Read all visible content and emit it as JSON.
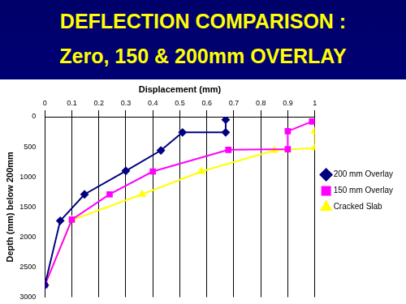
{
  "chart_data": {
    "type": "line",
    "title": "DEFLECTION COMPARISON :",
    "subtitle": "Zero, 150 & 200mm OVERLAY",
    "x_label": "Displacement (mm)",
    "y_label": "Depth (mm) below 200mm",
    "xlim": [
      0,
      1
    ],
    "xticks": [
      0,
      0.1,
      0.2,
      0.3,
      0.4,
      0.5,
      0.6,
      0.7,
      0.8,
      0.9,
      1
    ],
    "ylim": [
      3000,
      0
    ],
    "yticks": [
      0,
      500,
      1000,
      1500,
      2000,
      2500,
      3000
    ],
    "grid": true,
    "legend": "right",
    "series": [
      {
        "name": "200 mm Overlay",
        "color": "#000080",
        "marker": "diamond",
        "x": [
          0.67,
          0.67,
          0.51,
          0.43,
          0.3,
          0.147,
          0.057,
          0
        ],
        "values": [
          50,
          260,
          260,
          560,
          900,
          1290,
          1730,
          2800
        ]
      },
      {
        "name": "150 mm Overlay",
        "color": "#ff00ff",
        "marker": "square",
        "x": [
          0.99,
          0.9,
          0.9,
          0.68,
          0.4,
          0.24,
          0.1,
          0
        ],
        "values": [
          80,
          240,
          540,
          550,
          910,
          1290,
          1710,
          2800
        ]
      },
      {
        "name": "Cracked Slab",
        "color": "#ffff00",
        "marker": "triangle",
        "x": [
          1.0,
          1.0,
          0.85,
          0.58,
          0.36,
          0.1,
          0
        ],
        "values": [
          240,
          520,
          560,
          910,
          1290,
          1720,
          2800
        ]
      }
    ]
  }
}
